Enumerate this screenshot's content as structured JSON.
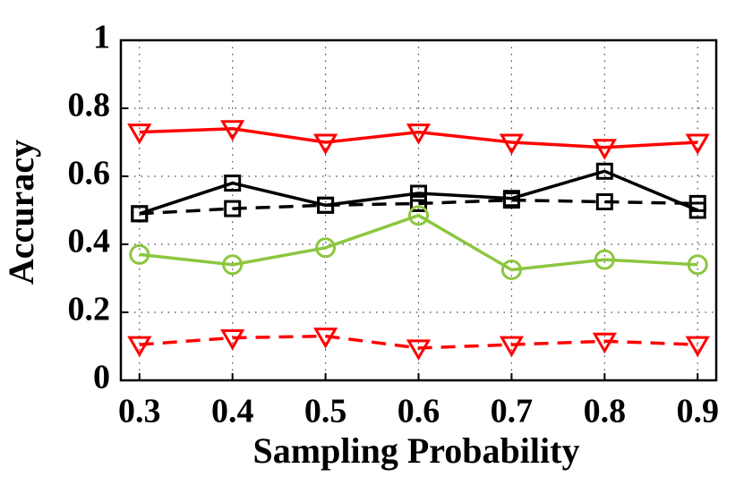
{
  "chart_data": {
    "type": "line",
    "x_label": "Sampling Probability",
    "y_label": "Accuracy",
    "x": [
      0.3,
      0.4,
      0.5,
      0.6,
      0.7,
      0.8,
      0.9
    ],
    "xlim": [
      0.28,
      0.92
    ],
    "xticks": [
      0.3,
      0.4,
      0.5,
      0.6,
      0.7,
      0.8,
      0.9
    ],
    "ylim": [
      0,
      1
    ],
    "yticks": [
      0,
      0.2,
      0.4,
      0.6,
      0.8,
      1
    ],
    "grid": true,
    "series": [
      {
        "color": "#ff0000",
        "marker": "triangle-down",
        "dash": "solid",
        "values": [
          0.73,
          0.74,
          0.7,
          0.73,
          0.7,
          0.685,
          0.7
        ]
      },
      {
        "color": "#000000",
        "marker": "square",
        "dash": "solid",
        "values": [
          0.49,
          0.58,
          0.515,
          0.55,
          0.535,
          0.615,
          0.5
        ]
      },
      {
        "color": "#000000",
        "marker": "square",
        "dash": "dashed",
        "values": [
          0.49,
          0.505,
          0.515,
          0.52,
          0.53,
          0.525,
          0.52
        ]
      },
      {
        "color": "#8cc63f",
        "marker": "circle",
        "dash": "solid",
        "values": [
          0.37,
          0.34,
          0.39,
          0.485,
          0.325,
          0.355,
          0.34
        ]
      },
      {
        "color": "#ff0000",
        "marker": "triangle-down",
        "dash": "dashed",
        "values": [
          0.105,
          0.125,
          0.13,
          0.095,
          0.105,
          0.115,
          0.105
        ]
      }
    ]
  }
}
